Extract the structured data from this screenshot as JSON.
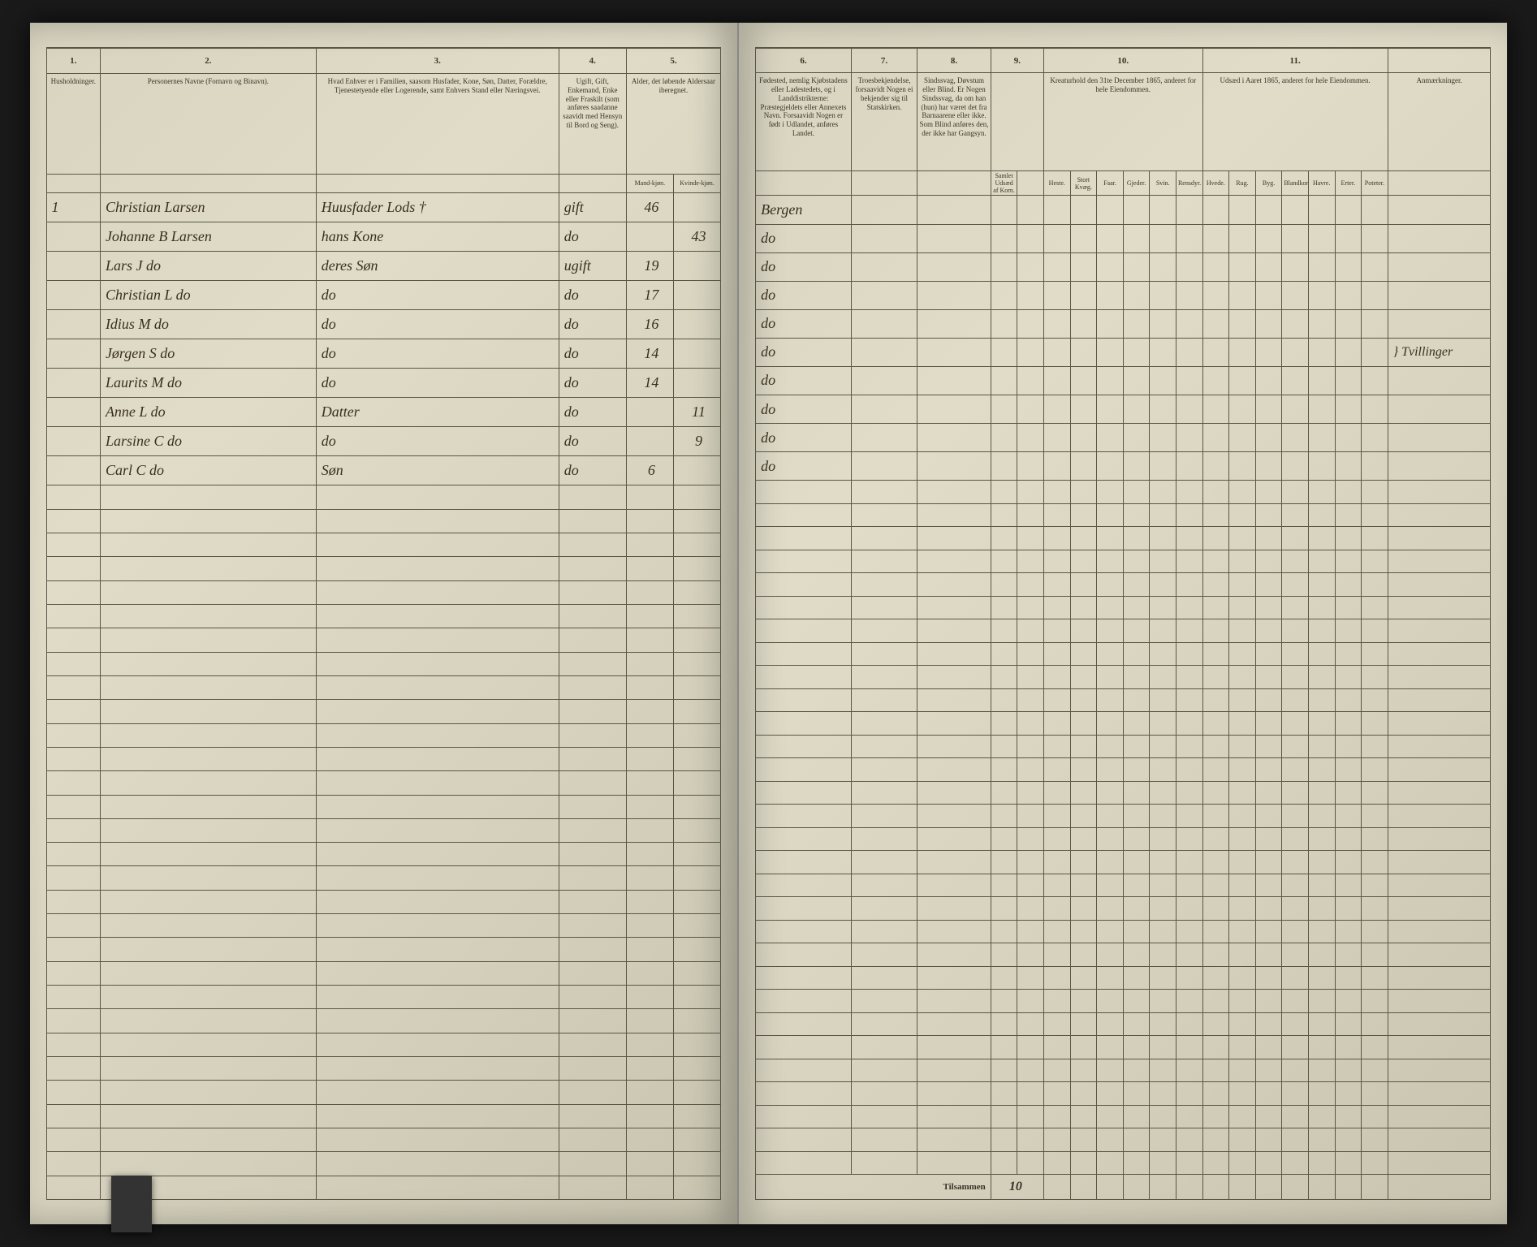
{
  "document": {
    "type": "census_ledger",
    "background_color": "#d8d4c0",
    "ink_color": "#3a2f1f",
    "rule_color": "#5a5548"
  },
  "columns_left": {
    "c1": {
      "num": "1.",
      "header": "Husholdninger."
    },
    "c2": {
      "num": "2.",
      "header": "Personernes Navne (Fornavn og Binavn)."
    },
    "c3": {
      "num": "3.",
      "header": "Hvad Enhver er i Familien, saasom Husfader, Kone, Søn, Datter, Forældre, Tjenestetyende eller Logerende, samt Enhvers Stand eller Næringsvei."
    },
    "c4": {
      "num": "4.",
      "header": "Ugift, Gift, Enkemand, Enke eller Fraskilt (som anføres saadanne saavidt med Hensyn til Bord og Seng).",
      "sub": "Mand-kjøn."
    },
    "c5": {
      "num": "5.",
      "header": "Alder, det løbende Aldersaar iberegnet.",
      "sub": "Kvinde-kjøn."
    }
  },
  "columns_right": {
    "c6": {
      "num": "6.",
      "header": "Fødested, nemlig Kjøbstadens eller Ladestedets, og i Landdistrikterne: Præstegjeldets eller Annexets Navn. Forsaavidt Nogen er født i Udlandet, anføres Landet."
    },
    "c7": {
      "num": "7.",
      "header": "Troesbekjendelse, forsaavidt Nogen ei bekjender sig til Statskirken."
    },
    "c8": {
      "num": "8.",
      "header": "Sindssvag, Døvstum eller Blind. Er Nogen Sindssvag, da om han (hun) har været det fra Barnaarene eller ikke. Som Blind anføres den, der ikke har Gangsyn."
    },
    "c9": {
      "num": "9."
    },
    "c10": {
      "num": "10.",
      "header": "Kreaturhold den 31te December 1865, anderet for hele Eiendommen."
    },
    "c11": {
      "num": "11.",
      "header": "Udsæd i Aaret 1865, anderet for hele Eiendommen."
    },
    "remarks": {
      "header": "Anmærkninger."
    }
  },
  "subcolumns_right": {
    "sc1": "Samlet Udsæd af Korn.",
    "sc2": "Heste.",
    "sc3": "Stort Kvæg.",
    "sc4": "Faar.",
    "sc5": "Gjeder.",
    "sc6": "Svin.",
    "sc7": "Rensdyr.",
    "sc8": "Hvede.",
    "sc9": "Rug.",
    "sc10": "Byg.",
    "sc11": "Blandkorn.",
    "sc12": "Havre.",
    "sc13": "Erter.",
    "sc14": "Poteter."
  },
  "rows": [
    {
      "hh": "1",
      "name": "Christian Larsen",
      "role": "Huusfader Lods †",
      "status": "gift",
      "age_m": "46",
      "age_f": "",
      "birthplace": "Bergen",
      "remark": ""
    },
    {
      "hh": "",
      "name": "Johanne B Larsen",
      "role": "hans Kone",
      "status": "do",
      "age_m": "",
      "age_f": "43",
      "birthplace": "do",
      "remark": ""
    },
    {
      "hh": "",
      "name": "Lars J     do",
      "role": "deres Søn",
      "status": "ugift",
      "age_m": "19",
      "age_f": "",
      "birthplace": "do",
      "remark": ""
    },
    {
      "hh": "",
      "name": "Christian L  do",
      "role": "do",
      "status": "do",
      "age_m": "17",
      "age_f": "",
      "birthplace": "do",
      "remark": ""
    },
    {
      "hh": "",
      "name": "Idius M    do",
      "role": "do",
      "status": "do",
      "age_m": "16",
      "age_f": "",
      "birthplace": "do",
      "remark": ""
    },
    {
      "hh": "",
      "name": "Jørgen S   do",
      "role": "do",
      "status": "do",
      "age_m": "14",
      "age_f": "",
      "birthplace": "do",
      "remark": "} Tvillinger"
    },
    {
      "hh": "",
      "name": "Laurits M  do",
      "role": "do",
      "status": "do",
      "age_m": "14",
      "age_f": "",
      "birthplace": "do",
      "remark": ""
    },
    {
      "hh": "",
      "name": "Anne L    do",
      "role": "Datter",
      "status": "do",
      "age_m": "",
      "age_f": "11",
      "birthplace": "do",
      "remark": ""
    },
    {
      "hh": "",
      "name": "Larsine C  do",
      "role": "do",
      "status": "do",
      "age_m": "",
      "age_f": "9",
      "birthplace": "do",
      "remark": ""
    },
    {
      "hh": "",
      "name": "Carl C    do",
      "role": "Søn",
      "status": "do",
      "age_m": "6",
      "age_f": "",
      "birthplace": "do",
      "remark": ""
    }
  ],
  "footer": {
    "label": "Tilsammen",
    "total": "10"
  },
  "empty_row_count": 30
}
